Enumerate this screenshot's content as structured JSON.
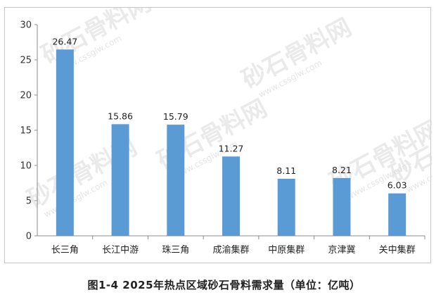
{
  "chart_data": {
    "type": "bar",
    "categories": [
      "长三角",
      "长江中游",
      "珠三角",
      "成渝集群",
      "中原集群",
      "京津冀",
      "关中集群"
    ],
    "values": [
      26.47,
      15.86,
      15.79,
      11.27,
      8.11,
      8.21,
      6.03
    ],
    "value_labels": [
      "26.47",
      "15.86",
      "15.79",
      "11.27",
      "8.11",
      "8.21",
      "6.03"
    ],
    "y_ticks": [
      "0",
      "5",
      "10",
      "15",
      "20",
      "25",
      "30"
    ],
    "ylim": [
      0,
      30
    ],
    "grid": false,
    "bar_color": "#5b9bd5",
    "title": "",
    "xlabel": "",
    "ylabel": ""
  },
  "caption": "图1-4 2025年热点区域砂石骨料需求量（单位：亿吨）",
  "watermark": {
    "text": "砂石骨料网",
    "url": "www.cssglw.com"
  }
}
